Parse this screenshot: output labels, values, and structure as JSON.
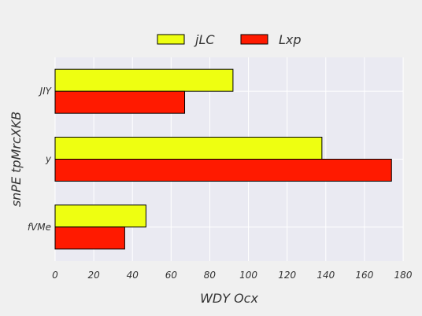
{
  "chart_data": {
    "type": "bar",
    "orientation": "horizontal",
    "title": "",
    "xlabel": "WDY Ocx",
    "ylabel": "snPE tpMrcXKB",
    "categories": [
      "JIY",
      "y",
      "fVMe"
    ],
    "series": [
      {
        "name": "jLC",
        "values": [
          92,
          138,
          47
        ],
        "color": "#eeff11"
      },
      {
        "name": "Lxp",
        "values": [
          67,
          174,
          36
        ],
        "color": "#ff1a00"
      }
    ],
    "xlim": [
      0,
      180
    ],
    "xticks": [
      0,
      20,
      40,
      60,
      80,
      100,
      120,
      140,
      160,
      180
    ],
    "grid": true,
    "legend_position": "top-center",
    "plot_background": "#eaeaf2",
    "figure_background": "#f0f0f0"
  }
}
